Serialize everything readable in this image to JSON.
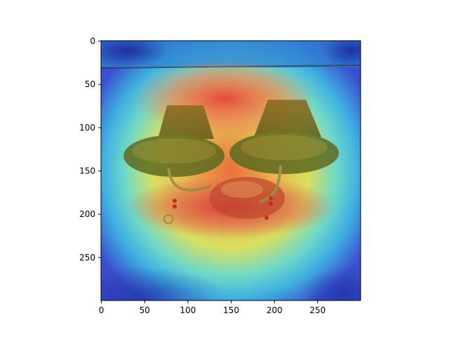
{
  "figure": {
    "description_kind": "heatmap-overlay-on-photo",
    "x_axis": {
      "range": [
        0,
        300
      ],
      "ticks": [
        {
          "value": 0,
          "label": "0"
        },
        {
          "value": 50,
          "label": "50"
        },
        {
          "value": 100,
          "label": "100"
        },
        {
          "value": 150,
          "label": "150"
        },
        {
          "value": 200,
          "label": "200"
        },
        {
          "value": 250,
          "label": "250"
        }
      ]
    },
    "y_axis": {
      "range": [
        0,
        300
      ],
      "inverted": true,
      "ticks": [
        {
          "value": 0,
          "label": "0"
        },
        {
          "value": 50,
          "label": "50"
        },
        {
          "value": 100,
          "label": "100"
        },
        {
          "value": 150,
          "label": "150"
        },
        {
          "value": 200,
          "label": "200"
        },
        {
          "value": 250,
          "label": "250"
        }
      ]
    },
    "colormap": "jet",
    "colors": {
      "low": "#2a3bd6",
      "mid_low": "#3fc6e0",
      "mid": "#d8e060",
      "high": "#e84a3a"
    }
  }
}
